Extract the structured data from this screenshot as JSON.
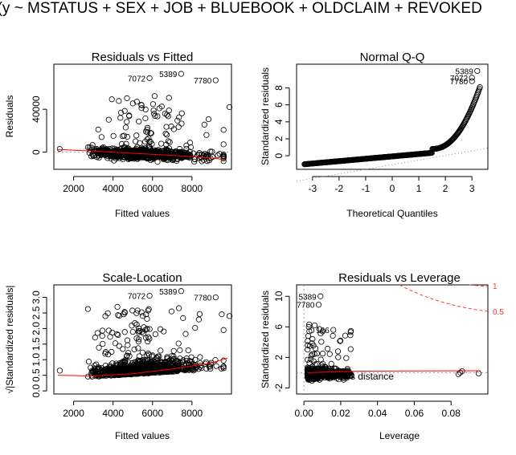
{
  "suptitle": "n(y ~ MSTATUS + SEX + JOB + BLUEBOOK + OLDCLAIM + REVOKED",
  "chart_data": [
    {
      "type": "scatter",
      "title": "Residuals vs Fitted",
      "xlabel": "Fitted values",
      "ylabel": "Residuals",
      "xlim": [
        1000,
        10000
      ],
      "ylim": [
        -16000,
        82000
      ],
      "xticks": [
        "2000",
        "4000",
        "6000",
        "8000"
      ],
      "yticks": [
        "0",
        "40000"
      ],
      "labeled_points": [
        {
          "label": "7072",
          "x": 5850,
          "y": 69000
        },
        {
          "label": "5389",
          "x": 7450,
          "y": 73000
        },
        {
          "label": "7780",
          "x": 9200,
          "y": 67000
        }
      ],
      "smoother": {
        "color": "#ff0000",
        "x": [
          1200,
          3000,
          5000,
          7000,
          9000,
          9700
        ],
        "y": [
          2500,
          1000,
          -1000,
          -3000,
          -5500,
          -7000
        ]
      }
    },
    {
      "type": "scatter",
      "title": "Normal Q-Q",
      "xlabel": "Theoretical Quantiles",
      "ylabel": "Standardized residuals",
      "xlim": [
        -3.6,
        3.6
      ],
      "ylim": [
        -1.6,
        10.8
      ],
      "xticks": [
        "-3",
        "-2",
        "-1",
        "0",
        "1",
        "2",
        "3"
      ],
      "yticks": [
        "0",
        "2",
        "4",
        "6",
        "8"
      ],
      "labeled_points": [
        {
          "label": "5389",
          "x": 3.2,
          "y": 10.0
        },
        {
          "label": "7072",
          "x": 3.0,
          "y": 9.2
        },
        {
          "label": "7780",
          "x": 3.0,
          "y": 8.8
        }
      ]
    },
    {
      "type": "scatter",
      "title": "Scale-Location",
      "xlabel": "Fitted values",
      "ylabel": "√|Standardized residuals|",
      "xlim": [
        1000,
        10000
      ],
      "ylim": [
        -0.1,
        3.4
      ],
      "xticks": [
        "2000",
        "4000",
        "6000",
        "8000"
      ],
      "yticks": [
        "0.0",
        "0.5",
        "1.0",
        "1.5",
        "2.0",
        "2.5",
        "3.0"
      ],
      "labeled_points": [
        {
          "label": "7072",
          "x": 5850,
          "y": 3.05
        },
        {
          "label": "5389",
          "x": 7450,
          "y": 3.2
        },
        {
          "label": "7780",
          "x": 9200,
          "y": 3.0
        }
      ],
      "smoother": {
        "color": "#ff0000",
        "x": [
          1200,
          3000,
          5000,
          7000,
          9000,
          9800
        ],
        "y": [
          0.5,
          0.48,
          0.55,
          0.7,
          0.9,
          1.05
        ]
      }
    },
    {
      "type": "scatter",
      "title": "Residuals vs Leverage",
      "xlabel": "Leverage",
      "ylabel": "Standardized residuals",
      "xlim": [
        -0.004,
        0.1
      ],
      "ylim": [
        -2.8,
        11.5
      ],
      "xticks": [
        "0.00",
        "0.02",
        "0.04",
        "0.06",
        "0.08"
      ],
      "yticks": [
        "-2",
        "2",
        "6",
        "10"
      ],
      "labeled_points": [
        {
          "label": "5389",
          "x": 0.009,
          "y": 10.0
        },
        {
          "label": "7780",
          "x": 0.008,
          "y": 8.9
        },
        {
          "label": "186",
          "x": 0.016,
          "y": 5.6
        }
      ],
      "cooks_contours": [
        "1",
        "0.5"
      ],
      "annotation": "Cook's distance"
    }
  ]
}
